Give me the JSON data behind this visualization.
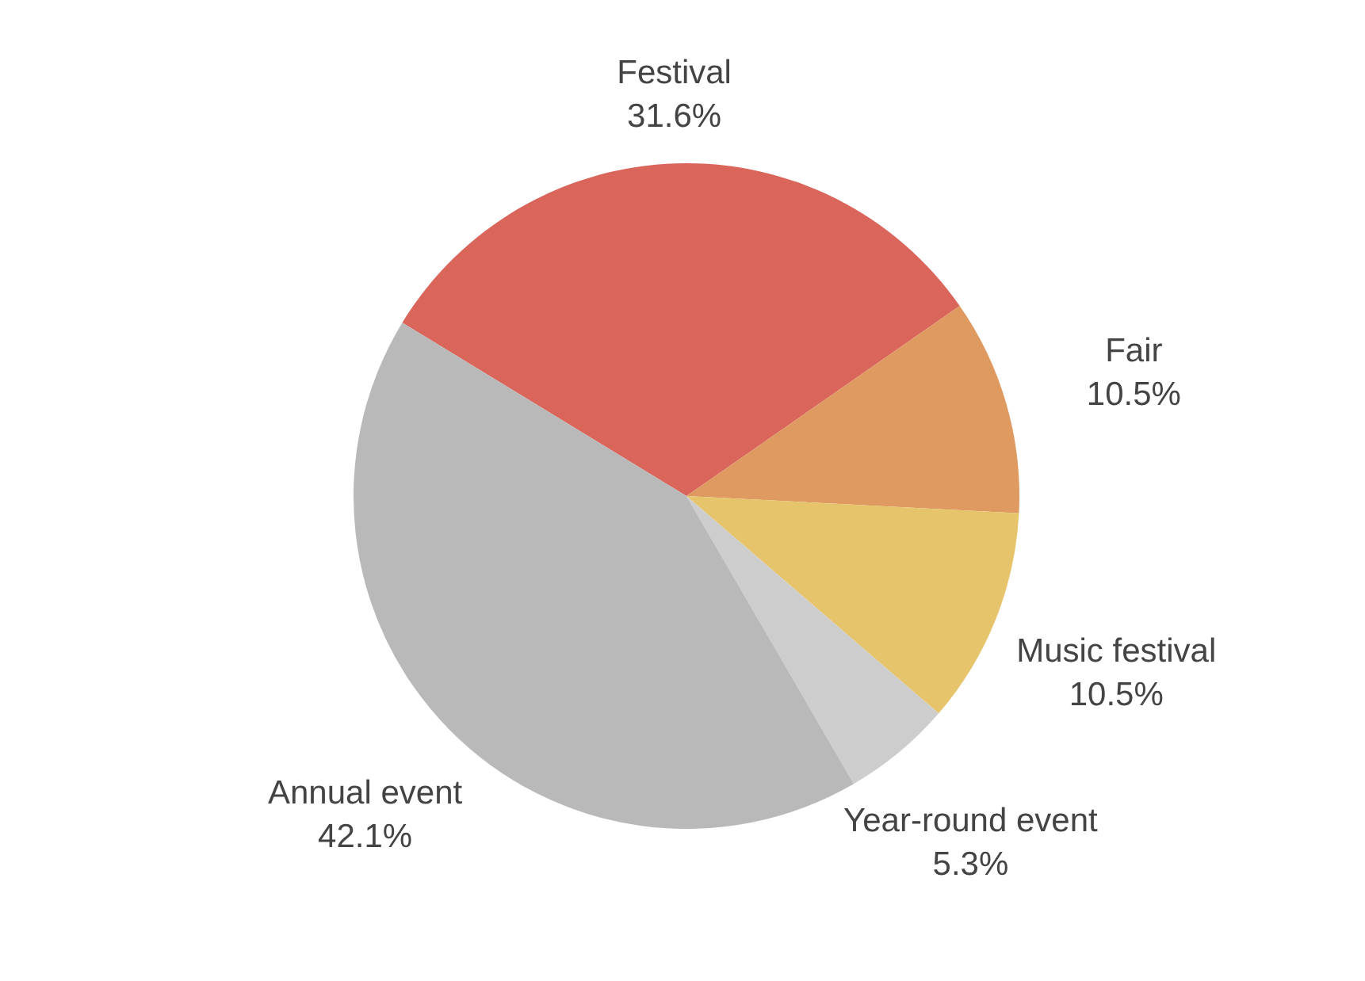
{
  "chart_data": {
    "type": "pie",
    "categories": [
      "Festival",
      "Fair",
      "Music festival",
      "Year-round event",
      "Annual event"
    ],
    "values": [
      31.6,
      10.5,
      10.5,
      5.3,
      42.1
    ],
    "colors": [
      "#d9655b",
      "#df9a62",
      "#e5c46c",
      "#cdcdcd",
      "#b9b9b9"
    ],
    "value_labels": [
      "31.6%",
      "10.5%",
      "10.5%",
      "5.3%",
      "42.1%"
    ],
    "legend": false
  }
}
